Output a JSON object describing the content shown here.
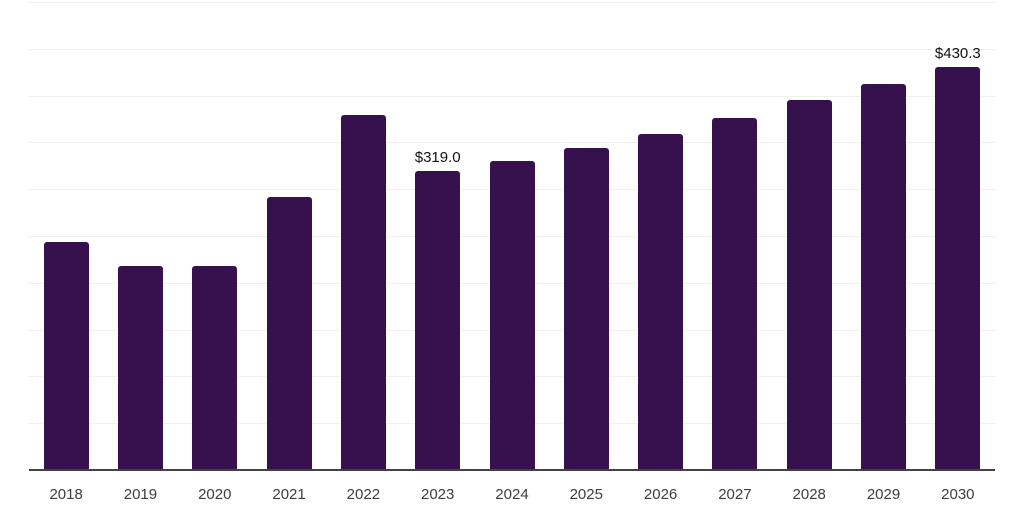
{
  "chart_data": {
    "type": "bar",
    "title": "",
    "xlabel": "",
    "ylabel": "",
    "categories": [
      "2018",
      "2019",
      "2020",
      "2021",
      "2022",
      "2023",
      "2024",
      "2025",
      "2026",
      "2027",
      "2028",
      "2029",
      "2030"
    ],
    "values": [
      243.5,
      217.5,
      218.0,
      292.0,
      379.0,
      319.0,
      330.5,
      343.5,
      358.5,
      376.5,
      395.5,
      412.0,
      430.3
    ],
    "data_labels": [
      {
        "category": "2023",
        "text": "$319.0"
      },
      {
        "category": "2030",
        "text": "$430.3"
      }
    ],
    "value_prefix": "$",
    "ylim": [
      0,
      500
    ],
    "gridline_interval": 50,
    "grid": "horizontal, faint, no y-axis tick labels",
    "legend": "none",
    "colors": {
      "bar": "#37114e",
      "gridline": "#f0f0f0",
      "axis_line": "#424242",
      "tick_label": "#3e3e3e",
      "data_label": "#111111",
      "background": "#ffffff"
    }
  }
}
